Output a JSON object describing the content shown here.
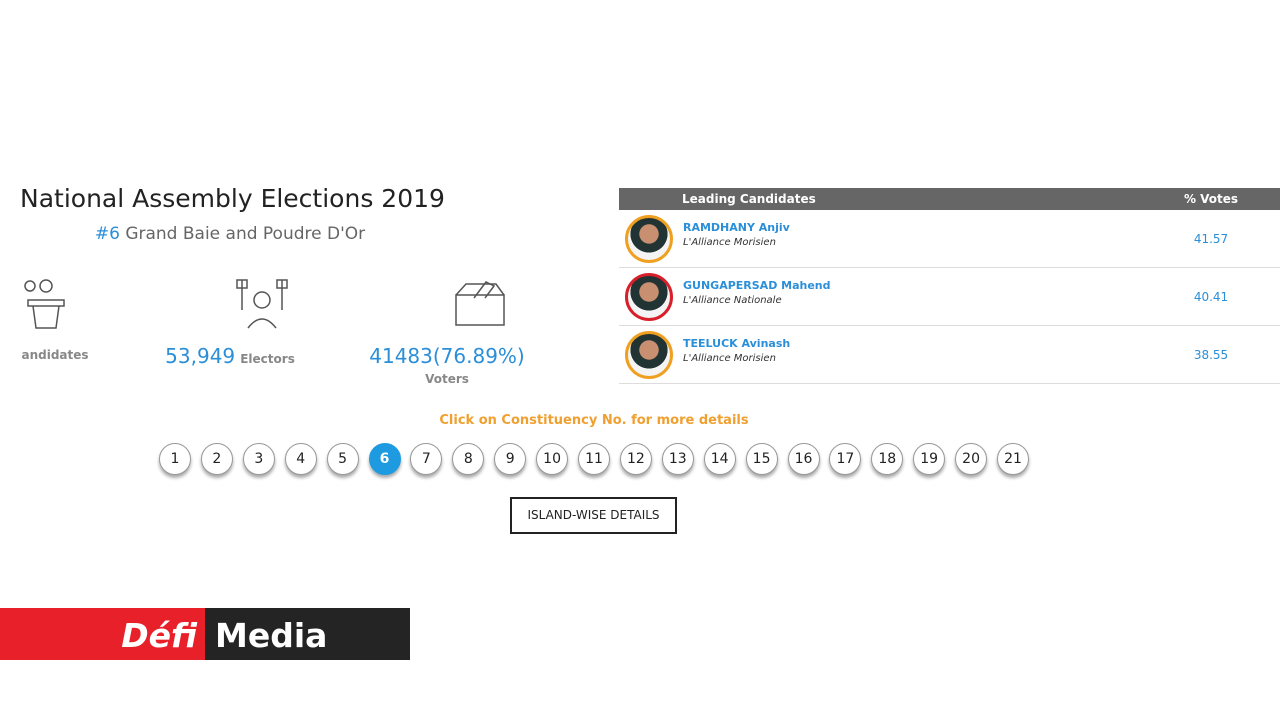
{
  "header": {
    "title": "National Assembly Elections 2019",
    "number": "#6",
    "constituency": "Grand Baie and Poudre D'Or"
  },
  "stats": [
    {
      "value": null,
      "label": "andidates"
    },
    {
      "value": "53,949",
      "label": "Electors"
    },
    {
      "value": "41483(76.89%)",
      "label": "Voters"
    }
  ],
  "table": {
    "columns": [
      "Leading Candidates",
      "% Votes"
    ],
    "rows": [
      {
        "name": "RAMDHANY Anjiv",
        "party": "L'Alliance Morisien",
        "votes": "41.57",
        "ring": "#f0a020"
      },
      {
        "name": "GUNGAPERSAD Mahend",
        "party": "L'Alliance Nationale",
        "votes": "40.41",
        "ring": "#d8202a"
      },
      {
        "name": "TEELUCK Avinash",
        "party": "L'Alliance Morisien",
        "votes": "38.55",
        "ring": "#f0a020"
      }
    ]
  },
  "hint": "Click on Constituency No. for more details",
  "constituencies": [
    1,
    2,
    3,
    4,
    5,
    6,
    7,
    8,
    9,
    10,
    11,
    12,
    13,
    14,
    15,
    16,
    17,
    18,
    19,
    20,
    21
  ],
  "active": 6,
  "button": "ISLAND-WISE DETAILS",
  "logo": {
    "left": "Défi",
    "right": "Media"
  }
}
